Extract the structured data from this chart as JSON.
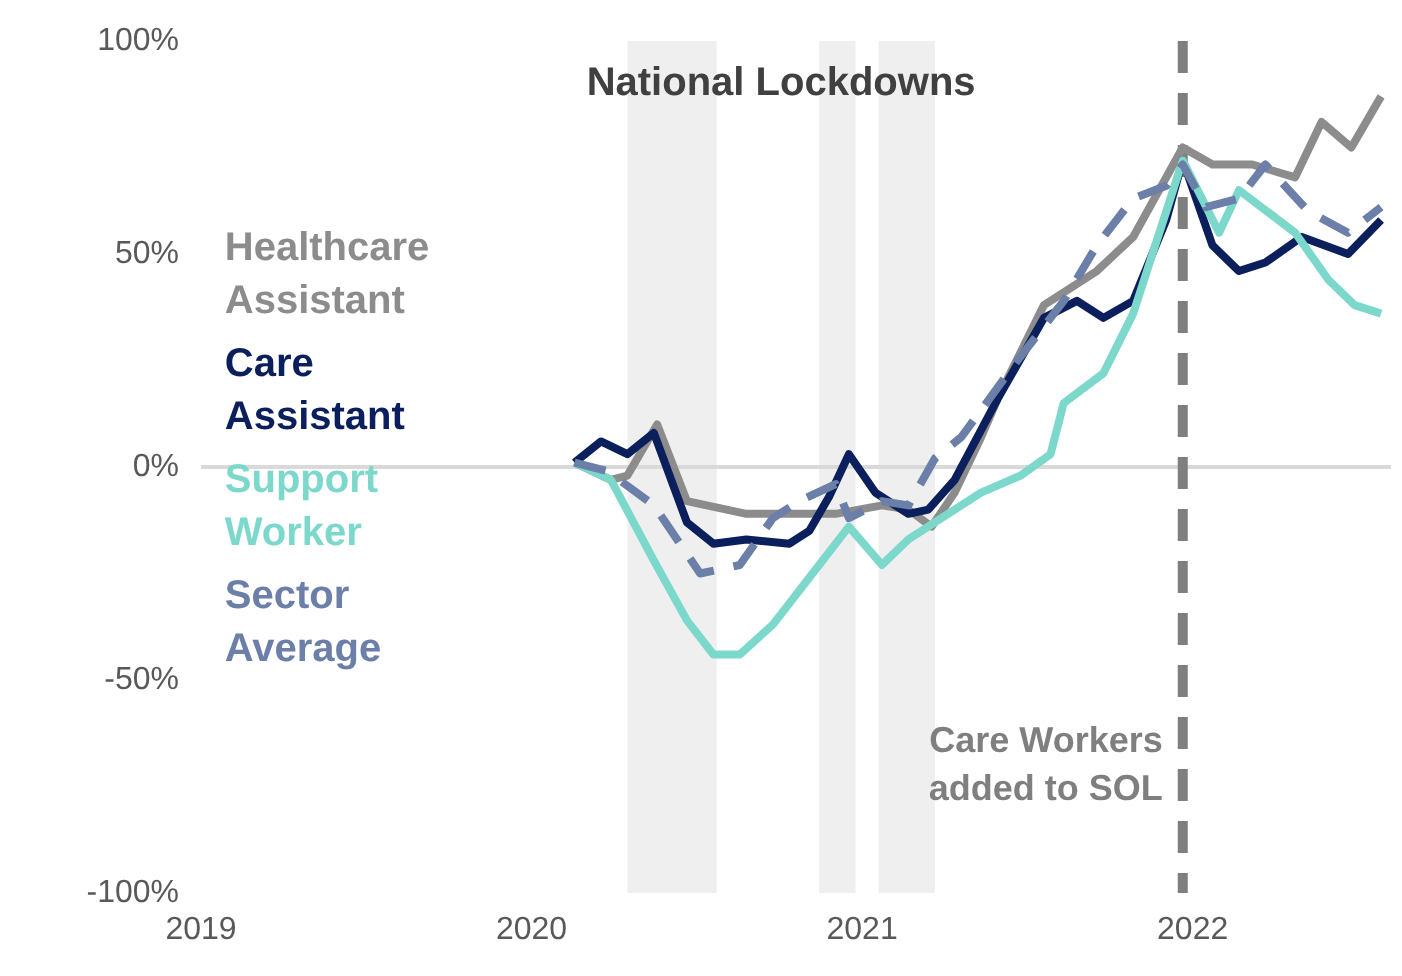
{
  "chart_data": {
    "type": "line",
    "xlim": [
      2019,
      2022.6
    ],
    "xticks": [
      2019,
      2020,
      2021,
      2022
    ],
    "ylim": [
      -100,
      100
    ],
    "yticks": [
      {
        "value": -100,
        "label": "-100%"
      },
      {
        "value": -50,
        "label": "-50%"
      },
      {
        "value": 0,
        "label": "0%"
      },
      {
        "value": 50,
        "label": "50%"
      },
      {
        "value": 100,
        "label": "100%"
      }
    ],
    "grid": false,
    "legend": "left",
    "line_style": "solid",
    "marker": "none",
    "series": [
      {
        "name": "Healthcare Assistant",
        "color": "#8c8c8c",
        "x": [
          2020.13,
          2020.24,
          2020.29,
          2020.38,
          2020.47,
          2020.65,
          2020.92,
          2021.06,
          2021.14,
          2021.21,
          2021.28,
          2021.36,
          2021.41,
          2021.55,
          2021.71,
          2021.82,
          2021.97,
          2022.06,
          2022.18,
          2022.31,
          2022.39,
          2022.48,
          2022.57
        ],
        "values": [
          1,
          -3,
          -2,
          10,
          -8,
          -11,
          -11,
          -9,
          -10,
          -14,
          -6,
          7,
          16,
          38,
          46,
          54,
          75,
          71,
          71,
          68,
          81,
          75,
          87
        ]
      },
      {
        "name": "Care Assistant",
        "color": "#0b1f5c",
        "x": [
          2020.13,
          2020.21,
          2020.29,
          2020.37,
          2020.47,
          2020.55,
          2020.65,
          2020.78,
          2020.84,
          2020.9,
          2020.96,
          2021.04,
          2021.14,
          2021.2,
          2021.28,
          2021.41,
          2021.55,
          2021.65,
          2021.73,
          2021.82,
          2021.92,
          2021.97,
          2022.06,
          2022.14,
          2022.22,
          2022.33,
          2022.47,
          2022.57
        ],
        "values": [
          1,
          6,
          3,
          8,
          -13,
          -18,
          -17,
          -18,
          -15,
          -7,
          3,
          -6,
          -11,
          -10,
          -3,
          16,
          35,
          39,
          35,
          39,
          58,
          72,
          52,
          46,
          48,
          54,
          50,
          58
        ]
      },
      {
        "name": "Support Worker",
        "color": "#7dd8cc",
        "x": [
          2020.13,
          2020.24,
          2020.37,
          2020.47,
          2020.55,
          2020.63,
          2020.73,
          2020.84,
          2020.96,
          2021.06,
          2021.14,
          2021.2,
          2021.36,
          2021.48,
          2021.57,
          2021.61,
          2021.73,
          2021.82,
          2021.92,
          2021.97,
          2022.08,
          2022.14,
          2022.31,
          2022.41,
          2022.49,
          2022.57
        ],
        "values": [
          1,
          -3,
          -22,
          -36,
          -44,
          -44,
          -37,
          -26,
          -14,
          -23,
          -17,
          -14,
          -6,
          -2,
          3,
          15,
          22,
          36,
          60,
          72,
          55,
          65,
          55,
          44,
          38,
          36
        ]
      },
      {
        "name": "Sector Average",
        "color": "#6b7fa8",
        "line_style": "dashed",
        "x": [
          2020.13,
          2020.23,
          2020.37,
          2020.51,
          2020.63,
          2020.73,
          2020.81,
          2020.92,
          2020.96,
          2021.06,
          2021.14,
          2021.22,
          2021.3,
          2021.47,
          2021.61,
          2021.71,
          2021.82,
          2021.92,
          2021.97,
          2022.04,
          2022.14,
          2022.22,
          2022.35,
          2022.47,
          2022.57
        ],
        "values": [
          1,
          -1,
          -9,
          -25,
          -23,
          -12,
          -8,
          -4,
          -12,
          -8,
          -9,
          2,
          7,
          25,
          39,
          52,
          63,
          66,
          71,
          61,
          63,
          71,
          60,
          55,
          61
        ]
      }
    ],
    "bands": [
      {
        "axis": "x",
        "from": 2020.29,
        "to": 2020.56,
        "color": "#efefef"
      },
      {
        "axis": "x",
        "from": 2020.87,
        "to": 2020.98,
        "color": "#efefef"
      },
      {
        "axis": "x",
        "from": 2021.05,
        "to": 2021.22,
        "color": "#efefef"
      }
    ],
    "ref_lines": [
      {
        "axis": "y",
        "value": 0,
        "color": "#d9d9d9",
        "line_style": "solid"
      },
      {
        "axis": "x",
        "value": 2021.97,
        "label": "Care Workers\nadded to SOL",
        "color": "#7f7f7f",
        "line_style": "dashed"
      }
    ],
    "annotations": [
      "National Lockdowns"
    ]
  }
}
